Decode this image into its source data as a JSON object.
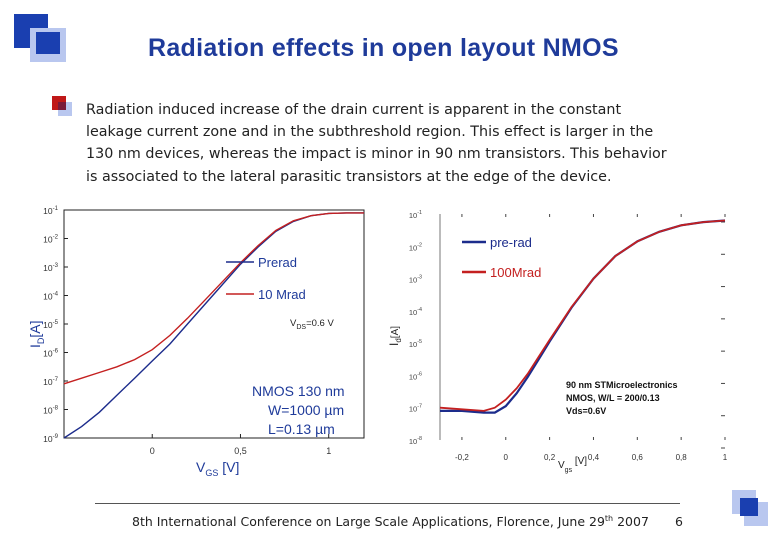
{
  "slide": {
    "title": "Radiation effects in open layout NMOS",
    "paragraph_lines": [
      "Radiation induced increase of the drain current is apparent in the constant",
      "leakage current zone and in the subthreshold region. This effect is larger in the",
      "130 nm devices, whereas the impact is minor in 90 nm transistors. This behavior",
      "is associated to the lateral parasitic transistors at the edge of the device."
    ],
    "footer_text": "8th International Conference on Large Scale Applications, Florence, June 29",
    "footer_sup": "th",
    "footer_year": " 2007",
    "page_number": "6",
    "colors": {
      "title": "#1f3b9a",
      "logo_blue": "#1a3fb0",
      "logo_light": "#b9c7ef",
      "bullet_red": "#c01818"
    }
  },
  "chart_data": [
    {
      "type": "line",
      "ylog": true,
      "xlim": [
        -0.5,
        1.2
      ],
      "ylim_exp": [
        -9,
        -1
      ],
      "x_ticks": [
        "0",
        "0,5",
        "1"
      ],
      "x_tick_values": [
        0,
        0.5,
        1
      ],
      "y_ticks": [
        "10-1",
        "10-2",
        "10-3",
        "10-4",
        "10-5",
        "10-6",
        "10-7",
        "10-8",
        "10-9"
      ],
      "xlabel_main": "V",
      "xlabel_sub": "GS",
      "xlabel_unit": " [V]",
      "ylabel_main": "I",
      "ylabel_sub": "D",
      "ylabel_unit": "[A]",
      "annotation_vds_main": "V",
      "annotation_vds_sub": "DS",
      "annotation_vds_val": "=0.6 V",
      "annotation_device": [
        "NMOS 130 nm",
        "W=1000 µm",
        "L=0.13 µm"
      ],
      "series": [
        {
          "name": "Prerad",
          "color": "#1c2c8c",
          "x": [
            -0.5,
            -0.4,
            -0.3,
            -0.2,
            -0.1,
            0,
            0.1,
            0.2,
            0.3,
            0.4,
            0.5,
            0.6,
            0.7,
            0.8,
            0.9,
            1,
            1.1,
            1.2
          ],
          "log_y": [
            -9,
            -8.6,
            -8.1,
            -7.5,
            -6.9,
            -6.3,
            -5.7,
            -5.0,
            -4.3,
            -3.6,
            -2.9,
            -2.3,
            -1.75,
            -1.4,
            -1.2,
            -1.12,
            -1.1,
            -1.1
          ]
        },
        {
          "name": "10 Mrad",
          "color": "#c42020",
          "x": [
            -0.5,
            -0.4,
            -0.3,
            -0.2,
            -0.1,
            0,
            0.1,
            0.2,
            0.3,
            0.4,
            0.5,
            0.6,
            0.7,
            0.8,
            0.9,
            1,
            1.1,
            1.2
          ],
          "log_y": [
            -7.1,
            -6.9,
            -6.7,
            -6.5,
            -6.25,
            -5.9,
            -5.4,
            -4.8,
            -4.15,
            -3.5,
            -2.85,
            -2.25,
            -1.72,
            -1.38,
            -1.2,
            -1.12,
            -1.1,
            -1.1
          ]
        }
      ]
    },
    {
      "type": "line",
      "ylog": true,
      "xlim": [
        -0.3,
        1.0
      ],
      "ylim_exp": [
        -8,
        -1
      ],
      "x_ticks": [
        "-0,2",
        "0",
        "0,2",
        "0,4",
        "0,6",
        "0,8",
        "1"
      ],
      "x_tick_values": [
        -0.2,
        0,
        0.2,
        0.4,
        0.6,
        0.8,
        1
      ],
      "y_ticks": [
        "10-1",
        "10-2",
        "10-3",
        "10-4",
        "10-5",
        "10-6",
        "10-7",
        "10-8"
      ],
      "xlabel_main": "V",
      "xlabel_sub": "gs",
      "xlabel_unit": " [V]",
      "ylabel_main": "I",
      "ylabel_sub": "d",
      "ylabel_unit": "[A]",
      "annotation_device": [
        "90 nm STMicroelectronics",
        "NMOS, W/L = 200/0.13",
        "Vds=0.6V"
      ],
      "series": [
        {
          "name": "pre-rad",
          "color": "#1c2c8c",
          "x": [
            -0.3,
            -0.2,
            -0.1,
            -0.05,
            0,
            0.05,
            0.1,
            0.15,
            0.2,
            0.3,
            0.4,
            0.5,
            0.6,
            0.7,
            0.8,
            0.9,
            1.0
          ],
          "log_y": [
            -7.1,
            -7.1,
            -7.15,
            -7.15,
            -6.95,
            -6.55,
            -6.05,
            -5.5,
            -4.95,
            -3.9,
            -3.0,
            -2.3,
            -1.85,
            -1.55,
            -1.35,
            -1.25,
            -1.2
          ]
        },
        {
          "name": "100Mrad",
          "color": "#c42020",
          "x": [
            -0.3,
            -0.2,
            -0.1,
            -0.05,
            0,
            0.05,
            0.1,
            0.15,
            0.2,
            0.3,
            0.4,
            0.5,
            0.6,
            0.7,
            0.8,
            0.9,
            1.0
          ],
          "log_y": [
            -7.0,
            -7.05,
            -7.1,
            -7.0,
            -6.75,
            -6.4,
            -5.95,
            -5.42,
            -4.9,
            -3.88,
            -3.0,
            -2.3,
            -1.85,
            -1.55,
            -1.35,
            -1.25,
            -1.2
          ]
        }
      ]
    }
  ]
}
